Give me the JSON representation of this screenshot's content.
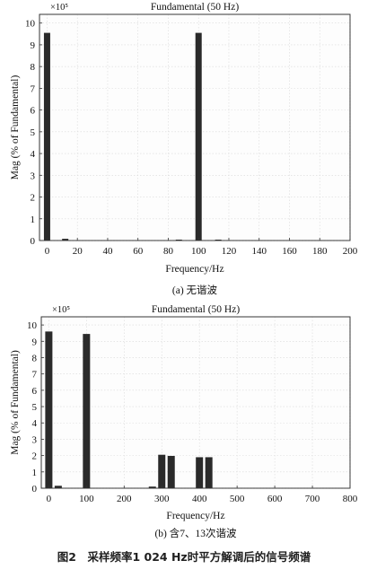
{
  "figure_caption": "图2　采样频率1 024 Hz时平方解调后的信号频谱",
  "colors": {
    "bar": "#2a2a2a",
    "grid": "#d9d9d9",
    "axis": "#333333",
    "background": "#fdfdfd"
  },
  "chart_data": [
    {
      "type": "bar",
      "title": "Fundamental (50 Hz)",
      "xlabel": "Frequency/Hz",
      "ylabel": "Mag (% of Fundamental)",
      "scale_label": "×10⁵",
      "subcaption": "(a) 无谐波",
      "xlim": [
        -5,
        200
      ],
      "ylim": [
        0,
        10.4
      ],
      "xticks": [
        0,
        20,
        40,
        60,
        80,
        100,
        120,
        140,
        160,
        180,
        200
      ],
      "xtick_labels": [
        "0",
        "20",
        "40",
        "60",
        "80",
        "100",
        "120",
        "140",
        "160",
        "180",
        "200"
      ],
      "yticks": [
        0,
        1,
        2,
        3,
        4,
        5,
        6,
        7,
        8,
        9,
        10
      ],
      "ytick_labels": [
        "0",
        "1",
        "2",
        "3",
        "4",
        "5",
        "6",
        "7",
        "8",
        "9",
        "10"
      ],
      "grid": true,
      "bar_width": 7,
      "x": [
        0,
        12,
        87,
        100,
        113
      ],
      "values": [
        9.55,
        0.08,
        0.03,
        9.55,
        0.04
      ]
    },
    {
      "type": "bar",
      "title": "Fundamental (50 Hz)",
      "xlabel": "Frequency/Hz",
      "ylabel": "Mag (% of Fundamental)",
      "scale_label": "×10⁵",
      "subcaption": "(b) 含7、13次谐波",
      "xlim": [
        -20,
        800
      ],
      "ylim": [
        0,
        10.5
      ],
      "xticks": [
        0,
        100,
        200,
        300,
        400,
        500,
        600,
        700,
        800
      ],
      "xtick_labels": [
        "0",
        "100",
        "200",
        "300",
        "400",
        "500",
        "600",
        "700",
        "800"
      ],
      "yticks": [
        0,
        1,
        2,
        3,
        4,
        5,
        6,
        7,
        8,
        9,
        10
      ],
      "ytick_labels": [
        "0",
        "1",
        "2",
        "3",
        "4",
        "5",
        "6",
        "7",
        "8",
        "9",
        "10"
      ],
      "grid": true,
      "bar_width": 8,
      "x": [
        0,
        25,
        100,
        275,
        300,
        325,
        400,
        425
      ],
      "values": [
        9.6,
        0.15,
        9.45,
        0.1,
        2.05,
        1.98,
        1.9,
        1.9
      ]
    }
  ]
}
